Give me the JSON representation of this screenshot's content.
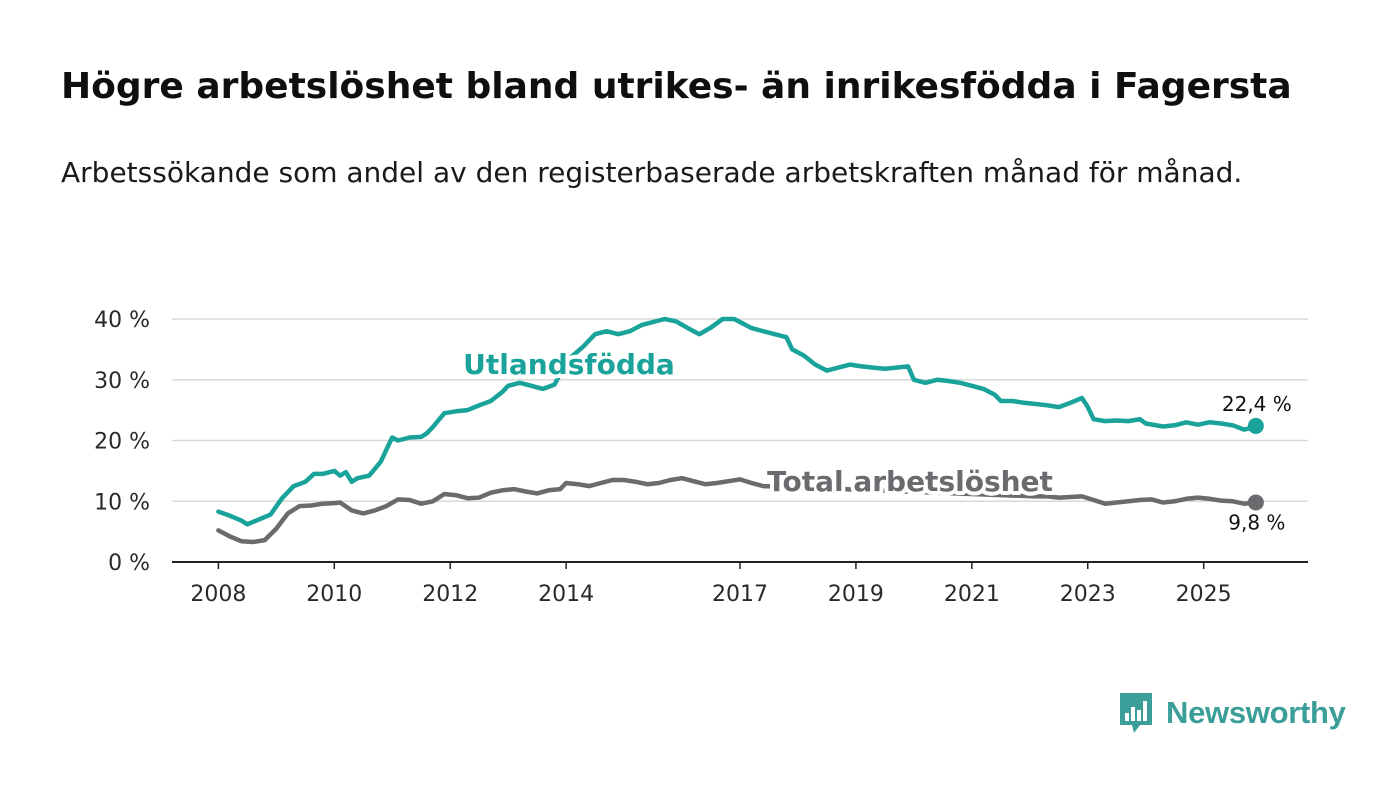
{
  "title": "Högre arbetslöshet bland utrikes- än inrikesfödda i Fagersta",
  "subtitle": "Arbetssökande som andel av den registerbaserade arbetskraften månad för månad.",
  "brand": {
    "name": "Newsworthy",
    "icon": "bar-chart-speech-bubble-icon",
    "color": "#3b9e99"
  },
  "colors": {
    "utlandsfodda": "#1aa39a",
    "total": "#6b6b6f",
    "grid": "#d9d9d9",
    "axis": "#222222"
  },
  "chart_data": {
    "type": "line",
    "title": "Högre arbetslöshet bland utrikes- än inrikesfödda i Fagersta",
    "xlabel": "",
    "ylabel": "",
    "ylim": [
      0,
      40
    ],
    "xlim": [
      2007.2,
      2026.8
    ],
    "yticks": [
      0,
      10,
      20,
      30,
      40
    ],
    "ytick_labels": [
      "0 %",
      "10 %",
      "20 %",
      "30 %",
      "40 %"
    ],
    "xticks": [
      2008,
      2010,
      2012,
      2014,
      2017,
      2019,
      2021,
      2023,
      2025
    ],
    "xtick_labels": [
      "2008",
      "2010",
      "2012",
      "2014",
      "2017",
      "2019",
      "2021",
      "2023",
      "2025"
    ],
    "grid": true,
    "series": [
      {
        "name": "Utlandsfödda",
        "label": "Utlandsfödda",
        "color": "#1aa39a",
        "end_label": "22,4 %",
        "x": [
          2008.0,
          2008.2,
          2008.4,
          2008.5,
          2008.7,
          2008.9,
          2009.1,
          2009.3,
          2009.5,
          2009.65,
          2009.8,
          2010.0,
          2010.1,
          2010.2,
          2010.3,
          2010.4,
          2010.6,
          2010.8,
          2010.9,
          2011.0,
          2011.1,
          2011.3,
          2011.5,
          2011.6,
          2011.7,
          2011.9,
          2012.1,
          2012.3,
          2012.5,
          2012.7,
          2012.9,
          2013.0,
          2013.2,
          2013.4,
          2013.6,
          2013.8,
          2013.9,
          2014.0,
          2014.3,
          2014.5,
          2014.7,
          2014.9,
          2015.1,
          2015.3,
          2015.5,
          2015.7,
          2015.9,
          2016.1,
          2016.3,
          2016.5,
          2016.7,
          2016.9,
          2017.0,
          2017.2,
          2017.4,
          2017.6,
          2017.8,
          2017.9,
          2018.1,
          2018.3,
          2018.5,
          2018.7,
          2018.9,
          2019.1,
          2019.3,
          2019.5,
          2019.7,
          2019.9,
          2020.0,
          2020.2,
          2020.4,
          2020.6,
          2020.8,
          2021.0,
          2021.2,
          2021.4,
          2021.5,
          2021.7,
          2021.9,
          2022.1,
          2022.3,
          2022.5,
          2022.7,
          2022.9,
          2023.0,
          2023.1,
          2023.3,
          2023.5,
          2023.7,
          2023.9,
          2024.0,
          2024.3,
          2024.5,
          2024.7,
          2024.9,
          2025.1,
          2025.3,
          2025.5,
          2025.7,
          2025.8,
          2025.9
        ],
        "values": [
          8.3,
          7.6,
          6.8,
          6.2,
          7.0,
          7.8,
          10.5,
          12.5,
          13.2,
          14.5,
          14.5,
          15.0,
          14.2,
          14.8,
          13.2,
          13.8,
          14.2,
          16.5,
          18.5,
          20.5,
          20.0,
          20.5,
          20.6,
          21.2,
          22.2,
          24.5,
          24.8,
          25.0,
          25.8,
          26.5,
          28.0,
          29.0,
          29.5,
          29.0,
          28.5,
          29.2,
          31.0,
          33.0,
          35.5,
          37.5,
          38.0,
          37.5,
          38.0,
          39.0,
          39.5,
          40.0,
          39.6,
          38.5,
          37.5,
          38.6,
          40.0,
          40.0,
          39.5,
          38.5,
          38.0,
          37.5,
          37.0,
          35.0,
          34.0,
          32.5,
          31.5,
          32.0,
          32.5,
          32.2,
          32.0,
          31.8,
          32.0,
          32.2,
          30.0,
          29.5,
          30.0,
          29.8,
          29.5,
          29.0,
          28.5,
          27.5,
          26.5,
          26.5,
          26.2,
          26.0,
          25.8,
          25.5,
          26.2,
          27.0,
          25.5,
          23.5,
          23.2,
          23.3,
          23.2,
          23.5,
          22.8,
          22.3,
          22.5,
          23.0,
          22.6,
          23.0,
          22.8,
          22.5,
          21.8,
          22.0,
          22.4
        ]
      },
      {
        "name": "Total arbetslöshet",
        "label": "Total arbetslöshet",
        "color": "#6b6b6f",
        "end_label": "9,8 %",
        "x": [
          2008.0,
          2008.2,
          2008.4,
          2008.6,
          2008.8,
          2009.0,
          2009.2,
          2009.4,
          2009.6,
          2009.8,
          2010.0,
          2010.1,
          2010.3,
          2010.5,
          2010.7,
          2010.9,
          2011.1,
          2011.3,
          2011.5,
          2011.7,
          2011.9,
          2012.1,
          2012.3,
          2012.5,
          2012.7,
          2012.9,
          2013.1,
          2013.3,
          2013.5,
          2013.7,
          2013.9,
          2014.0,
          2014.2,
          2014.4,
          2014.6,
          2014.8,
          2015.0,
          2015.2,
          2015.4,
          2015.6,
          2015.8,
          2016.0,
          2016.2,
          2016.4,
          2016.6,
          2016.8,
          2017.0,
          2017.2,
          2017.4,
          2022.1,
          2022.3,
          2022.5,
          2022.7,
          2022.9,
          2023.1,
          2023.3,
          2023.5,
          2023.7,
          2023.9,
          2024.1,
          2024.3,
          2024.5,
          2024.7,
          2024.9,
          2025.1,
          2025.3,
          2025.5,
          2025.7,
          2025.9
        ],
        "values": [
          5.2,
          4.2,
          3.4,
          3.3,
          3.6,
          5.5,
          8.0,
          9.2,
          9.3,
          9.6,
          9.7,
          9.8,
          8.5,
          8.0,
          8.5,
          9.2,
          10.3,
          10.2,
          9.6,
          10.0,
          11.2,
          11.0,
          10.5,
          10.6,
          11.4,
          11.8,
          12.0,
          11.6,
          11.3,
          11.8,
          12.0,
          13.0,
          12.8,
          12.5,
          13.0,
          13.5,
          13.5,
          13.2,
          12.8,
          13.0,
          13.5,
          13.8,
          13.3,
          12.8,
          13.0,
          13.3,
          13.6,
          13.0,
          12.5,
          10.8,
          10.8,
          10.6,
          10.7,
          10.8,
          10.2,
          9.6,
          9.8,
          10.0,
          10.2,
          10.3,
          9.8,
          10.0,
          10.4,
          10.6,
          10.4,
          10.1,
          10.0,
          9.6,
          9.8
        ]
      }
    ]
  }
}
